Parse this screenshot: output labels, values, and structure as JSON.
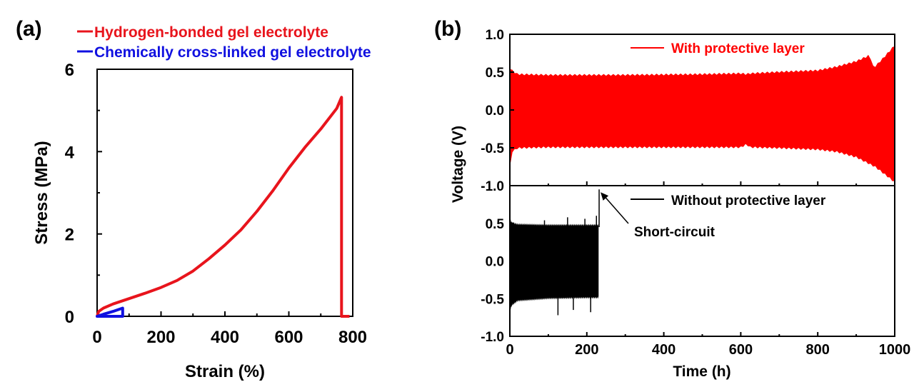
{
  "chart_data": [
    {
      "panel_label": "(a)",
      "type": "line",
      "xlabel": "Strain (%)",
      "ylabel": "Stress (MPa)",
      "xlim": [
        0,
        800
      ],
      "ylim": [
        0,
        6
      ],
      "x_ticks": [
        "0",
        "200",
        "400",
        "600",
        "800"
      ],
      "y_ticks": [
        "0",
        "2",
        "4",
        "6"
      ],
      "legend_placement": "above plot, top-left",
      "series": [
        {
          "name": "Hydrogen-bonded gel electrolyte",
          "color": "#e8141c",
          "x": [
            0,
            5,
            20,
            50,
            100,
            150,
            200,
            250,
            300,
            350,
            400,
            450,
            500,
            550,
            600,
            650,
            700,
            750,
            765,
            765,
            790
          ],
          "y": [
            0,
            0.12,
            0.2,
            0.3,
            0.43,
            0.56,
            0.7,
            0.87,
            1.1,
            1.4,
            1.73,
            2.1,
            2.55,
            3.05,
            3.6,
            4.1,
            4.55,
            5.05,
            5.32,
            0,
            0
          ]
        },
        {
          "name": "Chemically cross-linked gel electrolyte",
          "color": "#1010e0",
          "x": [
            0,
            20,
            50,
            80,
            80
          ],
          "y": [
            0,
            0.05,
            0.12,
            0.2,
            0
          ],
          "closed": true
        }
      ]
    },
    {
      "panel_label": "(b)",
      "type": "line",
      "xlabel": "Time (h)",
      "ylabel": "Voltage (V)",
      "xlim": [
        0,
        1000
      ],
      "x_ticks": [
        "0",
        "200",
        "400",
        "600",
        "800",
        "1000"
      ],
      "subplots": [
        {
          "ylim": [
            -1.0,
            1.0
          ],
          "y_ticks": [
            "1.0",
            "0.5",
            "0.0",
            "-0.5",
            "-1.0"
          ],
          "series": {
            "name": "With protective layer",
            "color": "#ff0000",
            "upper_envelope_x": [
              0,
              5,
              20,
              100,
              300,
              500,
              600,
              615,
              625,
              700,
              800,
              850,
              900,
              935,
              945,
              970,
              1000
            ],
            "upper_envelope_y": [
              0.55,
              0.52,
              0.47,
              0.46,
              0.46,
              0.47,
              0.48,
              0.47,
              0.48,
              0.5,
              0.52,
              0.57,
              0.64,
              0.72,
              0.55,
              0.68,
              0.85
            ],
            "lower_envelope_x": [
              0,
              5,
              20,
              100,
              300,
              500,
              600,
              615,
              625,
              700,
              800,
              850,
              900,
              950,
              1000
            ],
            "lower_envelope_y": [
              -0.75,
              -0.55,
              -0.5,
              -0.49,
              -0.49,
              -0.49,
              -0.49,
              -0.45,
              -0.49,
              -0.5,
              -0.52,
              -0.55,
              -0.62,
              -0.75,
              -0.95
            ]
          }
        },
        {
          "ylim": [
            -1.0,
            1.0
          ],
          "y_ticks": [
            "0.5",
            "0.0",
            "-0.5",
            "-1.0"
          ],
          "series": {
            "name": "Without protective layer",
            "color": "#000000",
            "upper_envelope_x": [
              0,
              5,
              20,
              100,
              200,
              225,
              230
            ],
            "upper_envelope_y": [
              0.55,
              0.5,
              0.48,
              0.47,
              0.47,
              0.47,
              0.47
            ],
            "lower_envelope_x": [
              0,
              5,
              20,
              100,
              200,
              225,
              230
            ],
            "lower_envelope_y": [
              -0.65,
              -0.58,
              -0.52,
              -0.49,
              -0.48,
              -0.48,
              -0.48
            ],
            "spikes_x": [
              90,
              125,
              150,
              165,
              195,
              210,
              225,
              232
            ],
            "spikes_y": [
              0.54,
              -0.72,
              0.58,
              -0.65,
              0.56,
              -0.68,
              0.6,
              0.95
            ]
          },
          "annotation": {
            "text": "Short-circuit",
            "x": 232,
            "y": 0.95
          }
        }
      ]
    }
  ]
}
